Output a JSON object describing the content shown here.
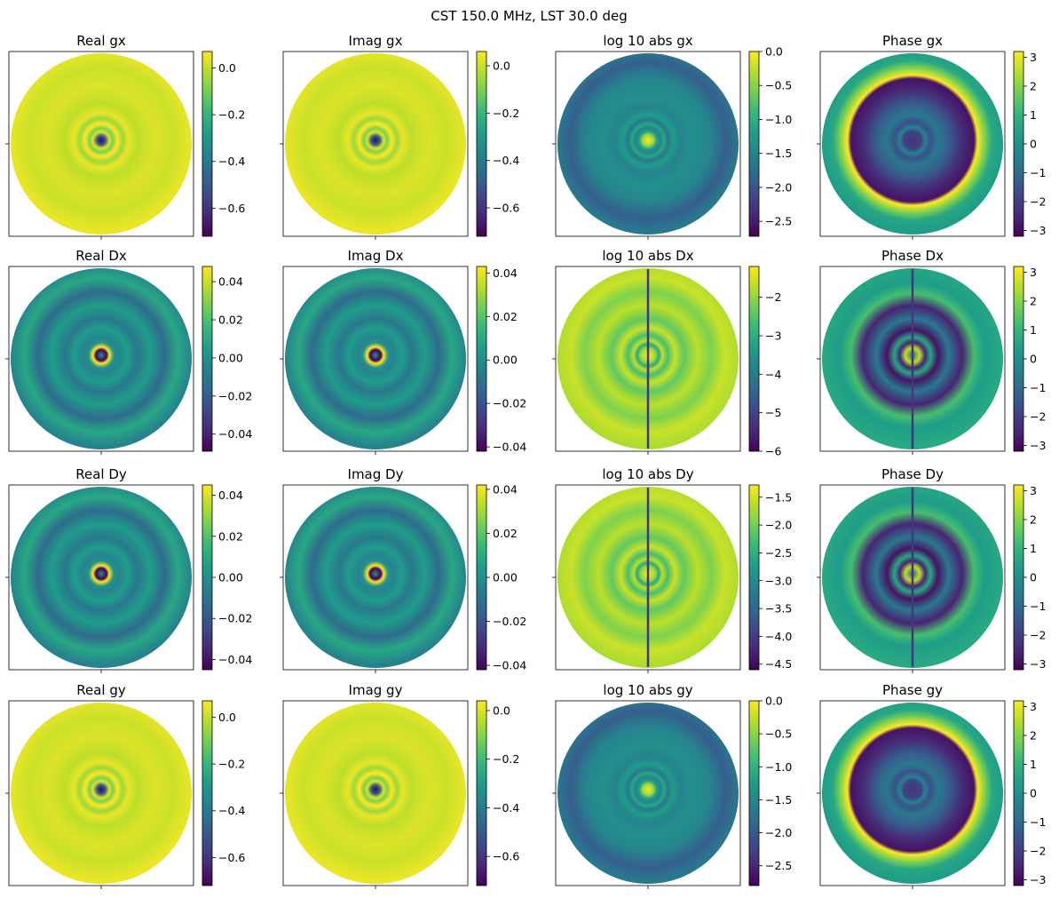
{
  "figure": {
    "suptitle": "CST 150.0 MHz, LST 30.0 deg"
  },
  "colors": {
    "viridis": [
      "#440154",
      "#482878",
      "#3e4989",
      "#31688e",
      "#26828e",
      "#1f9e89",
      "#35b779",
      "#6ece58",
      "#b5de2b",
      "#fde725"
    ]
  },
  "chart_data": [
    {
      "type": "heatmap",
      "title": "Real gx",
      "colorbar": {
        "range": [
          -0.72,
          0.07
        ],
        "ticks": [
          0.0,
          -0.2,
          -0.4,
          -0.6
        ],
        "tick_labels": [
          "0.0",
          "−0.2",
          "−0.4",
          "−0.6"
        ]
      },
      "pattern": "peak-center-low"
    },
    {
      "type": "heatmap",
      "title": "Imag gx",
      "colorbar": {
        "range": [
          -0.72,
          0.06
        ],
        "ticks": [
          0.0,
          -0.2,
          -0.4,
          -0.6
        ],
        "tick_labels": [
          "0.0",
          "−0.2",
          "−0.4",
          "−0.6"
        ]
      },
      "pattern": "peak-center-low"
    },
    {
      "type": "heatmap",
      "title": "log 10 abs gx",
      "colorbar": {
        "range": [
          -2.72,
          0.0
        ],
        "ticks": [
          0.0,
          -0.5,
          -1.0,
          -1.5,
          -2.0,
          -2.5
        ],
        "tick_labels": [
          "0.0",
          "−0.5",
          "−1.0",
          "−1.5",
          "−2.0",
          "−2.5"
        ]
      },
      "pattern": "log-gain"
    },
    {
      "type": "heatmap",
      "title": "Phase gx",
      "colorbar": {
        "range": [
          -3.2,
          3.2
        ],
        "ticks": [
          3,
          2,
          1,
          0,
          -1,
          -2,
          -3
        ],
        "tick_labels": [
          "3",
          "2",
          "1",
          "0",
          "−1",
          "−2",
          "−3"
        ]
      },
      "pattern": "phase-gain"
    },
    {
      "type": "heatmap",
      "title": "Real Dx",
      "colorbar": {
        "range": [
          -0.049,
          0.048
        ],
        "ticks": [
          0.04,
          0.02,
          0.0,
          -0.02,
          -0.04
        ],
        "tick_labels": [
          "0.04",
          "0.02",
          "0.00",
          "−0.02",
          "−0.04"
        ]
      },
      "pattern": "leak"
    },
    {
      "type": "heatmap",
      "title": "Imag Dx",
      "colorbar": {
        "range": [
          -0.042,
          0.043
        ],
        "ticks": [
          0.04,
          0.02,
          0.0,
          -0.02,
          -0.04
        ],
        "tick_labels": [
          "0.04",
          "0.02",
          "0.00",
          "−0.02",
          "−0.04"
        ]
      },
      "pattern": "leak"
    },
    {
      "type": "heatmap",
      "title": "log 10 abs Dx",
      "colorbar": {
        "range": [
          -6.0,
          -1.2
        ],
        "ticks": [
          -2,
          -3,
          -4,
          -5,
          -6
        ],
        "tick_labels": [
          "−2",
          "−3",
          "−4",
          "−5",
          "−6"
        ]
      },
      "pattern": "log-leak"
    },
    {
      "type": "heatmap",
      "title": "Phase Dx",
      "colorbar": {
        "range": [
          -3.2,
          3.2
        ],
        "ticks": [
          3,
          2,
          1,
          0,
          -1,
          -2,
          -3
        ],
        "tick_labels": [
          "3",
          "2",
          "1",
          "0",
          "−1",
          "−2",
          "−3"
        ]
      },
      "pattern": "phase-leak"
    },
    {
      "type": "heatmap",
      "title": "Real Dy",
      "colorbar": {
        "range": [
          -0.045,
          0.045
        ],
        "ticks": [
          0.04,
          0.02,
          0.0,
          -0.02,
          -0.04
        ],
        "tick_labels": [
          "0.04",
          "0.02",
          "0.00",
          "−0.02",
          "−0.04"
        ]
      },
      "pattern": "leak"
    },
    {
      "type": "heatmap",
      "title": "Imag Dy",
      "colorbar": {
        "range": [
          -0.042,
          0.042
        ],
        "ticks": [
          0.04,
          0.02,
          0.0,
          -0.02,
          -0.04
        ],
        "tick_labels": [
          "0.04",
          "0.02",
          "0.00",
          "−0.02",
          "−0.04"
        ]
      },
      "pattern": "leak"
    },
    {
      "type": "heatmap",
      "title": "log 10 abs Dy",
      "colorbar": {
        "range": [
          -4.6,
          -1.28
        ],
        "ticks": [
          -1.5,
          -2.0,
          -2.5,
          -3.0,
          -3.5,
          -4.0,
          -4.5
        ],
        "tick_labels": [
          "−1.5",
          "−2.0",
          "−2.5",
          "−3.0",
          "−3.5",
          "−4.0",
          "−4.5"
        ]
      },
      "pattern": "log-leak"
    },
    {
      "type": "heatmap",
      "title": "Phase Dy",
      "colorbar": {
        "range": [
          -3.2,
          3.2
        ],
        "ticks": [
          3,
          2,
          1,
          0,
          -1,
          -2,
          -3
        ],
        "tick_labels": [
          "3",
          "2",
          "1",
          "0",
          "−1",
          "−2",
          "−3"
        ]
      },
      "pattern": "phase-leak"
    },
    {
      "type": "heatmap",
      "title": "Real gy",
      "colorbar": {
        "range": [
          -0.72,
          0.07
        ],
        "ticks": [
          0.0,
          -0.2,
          -0.4,
          -0.6
        ],
        "tick_labels": [
          "0.0",
          "−0.2",
          "−0.4",
          "−0.6"
        ]
      },
      "pattern": "peak-center-low"
    },
    {
      "type": "heatmap",
      "title": "Imag gy",
      "colorbar": {
        "range": [
          -0.72,
          0.04
        ],
        "ticks": [
          0.0,
          -0.2,
          -0.4,
          -0.6
        ],
        "tick_labels": [
          "0.0",
          "−0.2",
          "−0.4",
          "−0.6"
        ]
      },
      "pattern": "peak-center-low"
    },
    {
      "type": "heatmap",
      "title": "log 10 abs gy",
      "colorbar": {
        "range": [
          -2.8,
          0.0
        ],
        "ticks": [
          0.0,
          -0.5,
          -1.0,
          -1.5,
          -2.0,
          -2.5
        ],
        "tick_labels": [
          "0.0",
          "−0.5",
          "−1.0",
          "−1.5",
          "−2.0",
          "−2.5"
        ]
      },
      "pattern": "log-gain"
    },
    {
      "type": "heatmap",
      "title": "Phase gy",
      "colorbar": {
        "range": [
          -3.2,
          3.2
        ],
        "ticks": [
          3,
          2,
          1,
          0,
          -1,
          -2,
          -3
        ],
        "tick_labels": [
          "3",
          "2",
          "1",
          "0",
          "−1",
          "−2",
          "−3"
        ]
      },
      "pattern": "phase-gain"
    }
  ]
}
